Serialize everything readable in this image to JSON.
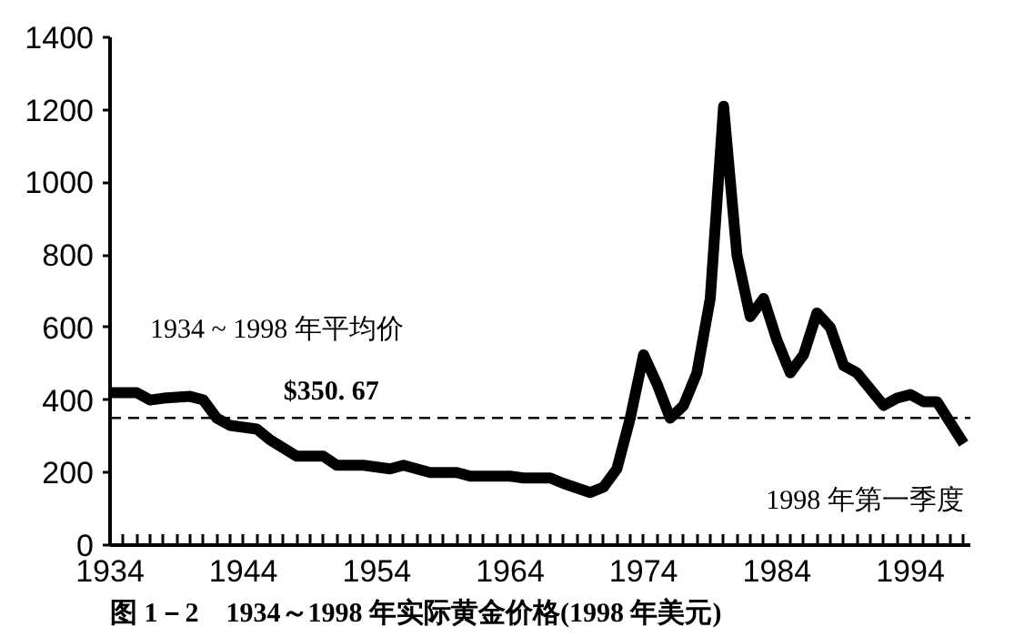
{
  "chart_data": {
    "type": "line",
    "title": "图 1－2　1934～1998 年实际黄金价格(1998 年美元)",
    "x": [
      1934,
      1936,
      1937,
      1938,
      1940,
      1941,
      1942,
      1943,
      1945,
      1946,
      1948,
      1950,
      1951,
      1953,
      1955,
      1956,
      1958,
      1960,
      1961,
      1964,
      1965,
      1967,
      1968,
      1970,
      1971,
      1972,
      1973,
      1974,
      1975,
      1976,
      1977,
      1978,
      1979,
      1980,
      1981,
      1982,
      1983,
      1984,
      1985,
      1986,
      1987,
      1988,
      1989,
      1990,
      1992,
      1993,
      1994,
      1995,
      1996,
      1998
    ],
    "series": [
      {
        "color": "#000000",
        "values": [
          420,
          420,
          400,
          405,
          410,
          400,
          350,
          330,
          320,
          290,
          245,
          245,
          220,
          220,
          210,
          220,
          200,
          200,
          190,
          190,
          185,
          185,
          170,
          145,
          160,
          210,
          350,
          525,
          445,
          350,
          385,
          475,
          680,
          1210,
          800,
          630,
          680,
          565,
          475,
          525,
          640,
          600,
          495,
          475,
          385,
          405,
          415,
          395,
          395,
          280
        ]
      }
    ],
    "xlim": [
      1934,
      1998.5
    ],
    "ylim": [
      0,
      1400
    ],
    "xticks": [
      1934,
      {
        "value": 1935,
        "label": null
      },
      {
        "value": 1936,
        "label": null
      },
      {
        "value": 1937,
        "label": null
      },
      {
        "value": 1938,
        "label": null
      },
      {
        "value": 1939,
        "label": null
      },
      {
        "value": 1940,
        "label": null
      },
      {
        "value": 1941,
        "label": null
      },
      {
        "value": 1942,
        "label": null
      },
      {
        "value": 1943,
        "label": null
      },
      1944,
      {
        "value": 1945,
        "label": null
      },
      {
        "value": 1946,
        "label": null
      },
      {
        "value": 1947,
        "label": null
      },
      {
        "value": 1948,
        "label": null
      },
      {
        "value": 1949,
        "label": null
      },
      {
        "value": 1950,
        "label": null
      },
      {
        "value": 1951,
        "label": null
      },
      {
        "value": 1952,
        "label": null
      },
      {
        "value": 1953,
        "label": null
      },
      1954,
      {
        "value": 1955,
        "label": null
      },
      {
        "value": 1956,
        "label": null
      },
      {
        "value": 1957,
        "label": null
      },
      {
        "value": 1958,
        "label": null
      },
      {
        "value": 1959,
        "label": null
      },
      {
        "value": 1960,
        "label": null
      },
      {
        "value": 1961,
        "label": null
      },
      {
        "value": 1962,
        "label": null
      },
      {
        "value": 1963,
        "label": null
      },
      1964,
      {
        "value": 1965,
        "label": null
      },
      {
        "value": 1966,
        "label": null
      },
      {
        "value": 1967,
        "label": null
      },
      {
        "value": 1968,
        "label": null
      },
      {
        "value": 1969,
        "label": null
      },
      {
        "value": 1970,
        "label": null
      },
      {
        "value": 1971,
        "label": null
      },
      {
        "value": 1972,
        "label": null
      },
      {
        "value": 1973,
        "label": null
      },
      1974,
      {
        "value": 1975,
        "label": null
      },
      {
        "value": 1976,
        "label": null
      },
      {
        "value": 1977,
        "label": null
      },
      {
        "value": 1978,
        "label": null
      },
      {
        "value": 1979,
        "label": null
      },
      {
        "value": 1980,
        "label": null
      },
      {
        "value": 1981,
        "label": null
      },
      {
        "value": 1982,
        "label": null
      },
      {
        "value": 1983,
        "label": null
      },
      1984,
      {
        "value": 1985,
        "label": null
      },
      {
        "value": 1986,
        "label": null
      },
      {
        "value": 1987,
        "label": null
      },
      {
        "value": 1988,
        "label": null
      },
      {
        "value": 1989,
        "label": null
      },
      {
        "value": 1990,
        "label": null
      },
      {
        "value": 1991,
        "label": null
      },
      {
        "value": 1992,
        "label": null
      },
      {
        "value": 1993,
        "label": null
      },
      1994,
      {
        "value": 1995,
        "label": null
      },
      {
        "value": 1996,
        "label": null
      },
      {
        "value": 1997,
        "label": null
      },
      {
        "value": 1998,
        "label": null
      }
    ],
    "yticks": [
      0,
      200,
      400,
      600,
      800,
      1000,
      1200,
      1400
    ],
    "ref_lines": [
      {
        "axis": "y",
        "value": 350.67,
        "line_style": "dashed",
        "color": "#000000"
      }
    ],
    "annotations": [
      "1934 ~ 1998 年平均价",
      "$350. 67",
      {
        "text": "1998 年第一季度",
        "x": 1998,
        "y": 280
      }
    ],
    "grid": false,
    "marker": "none",
    "line_style": "solid"
  }
}
